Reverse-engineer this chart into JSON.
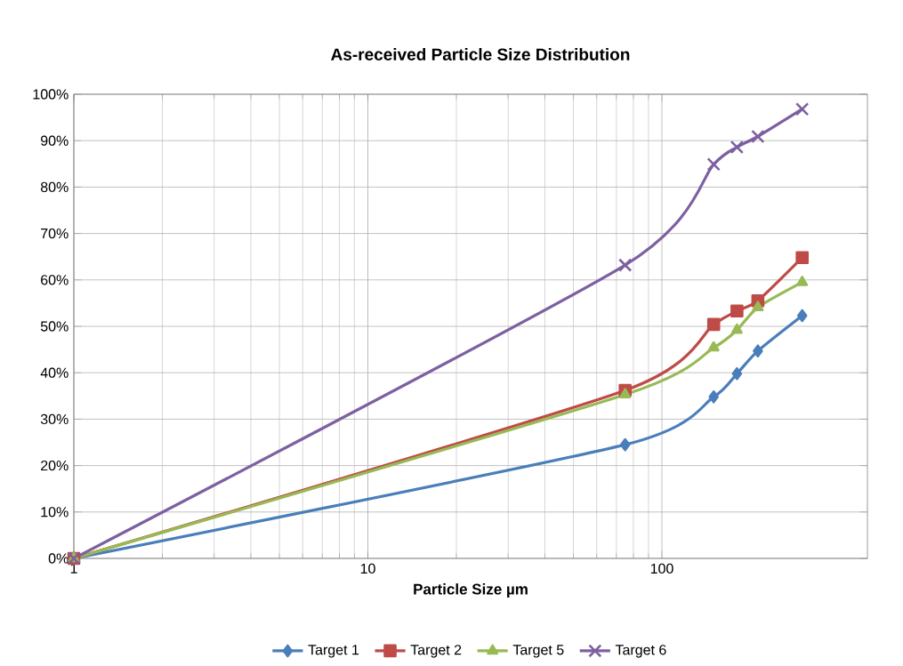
{
  "chart_data": {
    "type": "line",
    "title": "As-received Particle Size Distribution",
    "xlabel": "Particle Size µm",
    "log": "x",
    "xlim": [
      1,
      500
    ],
    "xticks": [
      1,
      10,
      100
    ],
    "ylim": [
      0,
      100
    ],
    "yticks": [
      {
        "value": 0,
        "label": "0%"
      },
      {
        "value": 10,
        "label": "10%"
      },
      {
        "value": 20,
        "label": "20%"
      },
      {
        "value": 30,
        "label": "30%"
      },
      {
        "value": 40,
        "label": "40%"
      },
      {
        "value": 50,
        "label": "50%"
      },
      {
        "value": 60,
        "label": "60%"
      },
      {
        "value": 70,
        "label": "70%"
      },
      {
        "value": 80,
        "label": "80%"
      },
      {
        "value": 90,
        "label": "90%"
      },
      {
        "value": 100,
        "label": "100%"
      }
    ],
    "grid": true,
    "legend": "bottom",
    "x": [
      1,
      75,
      150,
      180,
      212,
      300
    ],
    "series": [
      {
        "name": "Target 1",
        "color": "#4a7ebb",
        "marker": "diamond",
        "values": [
          0,
          24.5,
          34.8,
          39.8,
          44.7,
          52.3
        ]
      },
      {
        "name": "Target 2",
        "color": "#be4b48",
        "marker": "square",
        "values": [
          0,
          36.2,
          50.4,
          53.3,
          55.5,
          64.8
        ]
      },
      {
        "name": "Target 5",
        "color": "#98b954",
        "marker": "triangle",
        "values": [
          0,
          35.3,
          45.4,
          49.2,
          54.1,
          59.5
        ]
      },
      {
        "name": "Target 6",
        "color": "#7d60a0",
        "marker": "cross",
        "values": [
          0,
          63.2,
          84.9,
          88.6,
          90.9,
          96.8
        ]
      }
    ]
  }
}
